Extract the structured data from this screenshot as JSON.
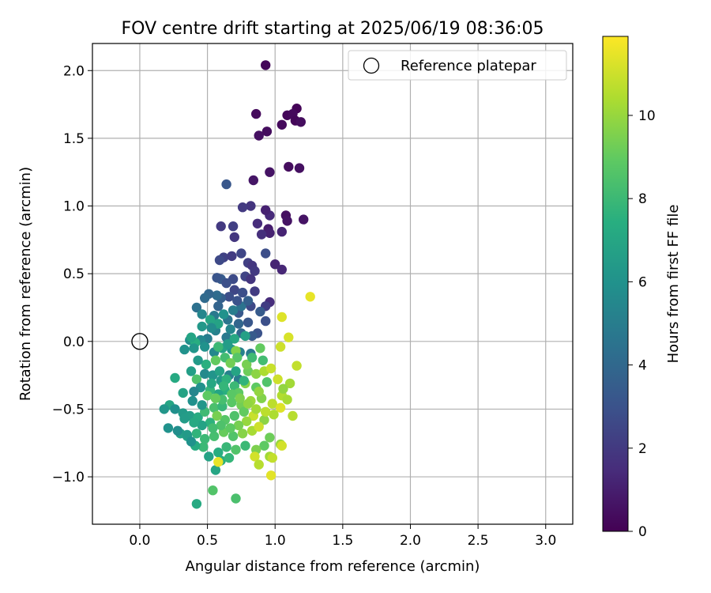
{
  "chart_data": {
    "type": "scatter",
    "title": "FOV centre drift starting at 2025/06/19 08:36:05",
    "xlabel": "Angular distance from reference (arcmin)",
    "ylabel": "Rotation from reference (arcmin)",
    "xlim": [
      -0.35,
      3.2
    ],
    "ylim": [
      -1.35,
      2.2
    ],
    "x_ticks": [
      0.0,
      0.5,
      1.0,
      1.5,
      2.0,
      2.5,
      3.0
    ],
    "x_tick_labels": [
      "0.0",
      "0.5",
      "1.0",
      "1.5",
      "2.0",
      "2.5",
      "3.0"
    ],
    "y_ticks": [
      -1.0,
      -0.5,
      0.0,
      0.5,
      1.0,
      1.5,
      2.0
    ],
    "y_tick_labels": [
      "−1.0",
      "−0.5",
      "0.0",
      "0.5",
      "1.0",
      "1.5",
      "2.0"
    ],
    "grid": true,
    "colormap": "viridis",
    "colorbar": {
      "label": "Hours from first FF file",
      "range": [
        0,
        11.9
      ],
      "ticks": [
        0,
        2,
        4,
        6,
        8,
        10
      ],
      "tick_labels": [
        "0",
        "2",
        "4",
        "6",
        "8",
        "10"
      ]
    },
    "legend": {
      "placement": "top-right",
      "entries": [
        {
          "label": "Reference platepar",
          "marker": "open-circle"
        }
      ]
    },
    "reference_point": {
      "x": 0.0,
      "y": 0.0
    },
    "points": [
      [
        0.93,
        2.04,
        0.2
      ],
      [
        0.86,
        1.68,
        0.3
      ],
      [
        1.16,
        1.72,
        0.1
      ],
      [
        1.09,
        1.67,
        0.2
      ],
      [
        1.13,
        1.68,
        0.3
      ],
      [
        1.15,
        1.63,
        0.2
      ],
      [
        1.19,
        1.62,
        0.4
      ],
      [
        1.05,
        1.6,
        0.3
      ],
      [
        0.94,
        1.55,
        0.4
      ],
      [
        0.88,
        1.52,
        0.5
      ],
      [
        1.1,
        1.29,
        0.4
      ],
      [
        1.18,
        1.28,
        0.5
      ],
      [
        0.96,
        1.25,
        0.6
      ],
      [
        0.84,
        1.19,
        0.7
      ],
      [
        1.21,
        0.9,
        0.6
      ],
      [
        1.08,
        0.93,
        0.5
      ],
      [
        1.09,
        0.89,
        0.6
      ],
      [
        0.96,
        0.93,
        1.4
      ],
      [
        0.93,
        0.97,
        1.1
      ],
      [
        0.82,
        1.0,
        1.8
      ],
      [
        0.76,
        0.99,
        2.0
      ],
      [
        0.64,
        1.16,
        3.2
      ],
      [
        0.6,
        0.85,
        2.0
      ],
      [
        0.69,
        0.85,
        2.2
      ],
      [
        0.87,
        0.87,
        1.5
      ],
      [
        0.95,
        0.83,
        0.9
      ],
      [
        0.96,
        0.8,
        1.1
      ],
      [
        1.05,
        0.81,
        1.2
      ],
      [
        0.9,
        0.79,
        1.6
      ],
      [
        0.7,
        0.77,
        1.9
      ],
      [
        0.62,
        0.62,
        2.3
      ],
      [
        0.59,
        0.6,
        2.6
      ],
      [
        0.68,
        0.63,
        2.1
      ],
      [
        0.75,
        0.65,
        2.5
      ],
      [
        0.8,
        0.58,
        2.2
      ],
      [
        0.83,
        0.56,
        1.9
      ],
      [
        1.0,
        0.57,
        1.2
      ],
      [
        1.05,
        0.53,
        1.3
      ],
      [
        0.85,
        0.52,
        2.0
      ],
      [
        0.78,
        0.48,
        2.4
      ],
      [
        0.69,
        0.46,
        2.7
      ],
      [
        0.6,
        0.46,
        3.4
      ],
      [
        0.57,
        0.47,
        3.1
      ],
      [
        0.64,
        0.43,
        2.9
      ],
      [
        0.82,
        0.46,
        1.8
      ],
      [
        0.93,
        0.65,
        2.8
      ],
      [
        0.7,
        0.38,
        2.5
      ],
      [
        0.76,
        0.36,
        2.8
      ],
      [
        0.85,
        0.37,
        2.1
      ],
      [
        0.96,
        0.29,
        1.5
      ],
      [
        0.93,
        0.26,
        2.1
      ],
      [
        0.82,
        0.26,
        2.6
      ],
      [
        0.73,
        0.21,
        3.3
      ],
      [
        0.66,
        0.33,
        2.8
      ],
      [
        0.6,
        0.32,
        3.6
      ],
      [
        0.57,
        0.34,
        4.2
      ],
      [
        0.51,
        0.35,
        3.9
      ],
      [
        0.48,
        0.32,
        4.1
      ],
      [
        0.42,
        0.25,
        4.4
      ],
      [
        0.46,
        0.2,
        5.4
      ],
      [
        0.55,
        0.19,
        4.8
      ],
      [
        0.65,
        0.16,
        4.6
      ],
      [
        0.73,
        0.13,
        3.9
      ],
      [
        0.8,
        0.14,
        3.2
      ],
      [
        0.87,
        0.06,
        3.0
      ],
      [
        0.83,
        0.04,
        3.4
      ],
      [
        0.75,
        0.06,
        4.0
      ],
      [
        0.64,
        0.03,
        4.8
      ],
      [
        0.56,
        0.08,
        5.2
      ],
      [
        0.5,
        0.02,
        5.0
      ],
      [
        0.45,
        0.01,
        5.5
      ],
      [
        0.37,
        0.01,
        5.8
      ],
      [
        0.41,
        -0.01,
        7.4
      ],
      [
        0.33,
        -0.06,
        6.0
      ],
      [
        0.4,
        -0.05,
        6.2
      ],
      [
        0.48,
        -0.04,
        6.0
      ],
      [
        0.55,
        -0.08,
        5.5
      ],
      [
        0.61,
        -0.05,
        6.8
      ],
      [
        0.68,
        -0.06,
        6.1
      ],
      [
        0.74,
        -0.08,
        5.2
      ],
      [
        0.82,
        -0.09,
        4.8
      ],
      [
        0.89,
        -0.05,
        9.0
      ],
      [
        1.04,
        -0.04,
        11.0
      ],
      [
        1.05,
        0.18,
        11.3
      ],
      [
        1.1,
        0.03,
        11.2
      ],
      [
        1.26,
        0.33,
        11.5
      ],
      [
        0.71,
        -0.07,
        9.6
      ],
      [
        0.63,
        -0.12,
        8.2
      ],
      [
        0.56,
        -0.14,
        9.0
      ],
      [
        0.49,
        -0.17,
        7.5
      ],
      [
        0.43,
        -0.14,
        6.4
      ],
      [
        0.38,
        -0.22,
        6.6
      ],
      [
        0.26,
        -0.27,
        7.2
      ],
      [
        0.42,
        -0.28,
        8.5
      ],
      [
        0.48,
        -0.24,
        5.6
      ],
      [
        0.54,
        -0.25,
        6.1
      ],
      [
        0.59,
        -0.22,
        6.8
      ],
      [
        0.66,
        -0.25,
        5.2
      ],
      [
        0.73,
        -0.28,
        4.9
      ],
      [
        0.8,
        -0.22,
        9.2
      ],
      [
        0.86,
        -0.24,
        9.8
      ],
      [
        0.92,
        -0.22,
        10.4
      ],
      [
        0.97,
        -0.2,
        10.9
      ],
      [
        1.16,
        -0.18,
        10.8
      ],
      [
        1.02,
        -0.28,
        11.0
      ],
      [
        1.05,
        -0.4,
        10.5
      ],
      [
        1.11,
        -0.31,
        10.2
      ],
      [
        1.06,
        -0.35,
        9.9
      ],
      [
        0.94,
        -0.3,
        8.6
      ],
      [
        0.86,
        -0.34,
        8.9
      ],
      [
        0.78,
        -0.31,
        9.7
      ],
      [
        0.7,
        -0.33,
        8.0
      ],
      [
        0.63,
        -0.36,
        7.5
      ],
      [
        0.58,
        -0.39,
        6.9
      ],
      [
        0.52,
        -0.36,
        7.8
      ],
      [
        0.45,
        -0.34,
        6.0
      ],
      [
        0.4,
        -0.37,
        5.4
      ],
      [
        0.32,
        -0.38,
        6.8
      ],
      [
        0.22,
        -0.47,
        7.0
      ],
      [
        0.18,
        -0.5,
        6.2
      ],
      [
        0.26,
        -0.5,
        5.9
      ],
      [
        0.32,
        -0.53,
        6.4
      ],
      [
        0.37,
        -0.55,
        6.6
      ],
      [
        0.43,
        -0.56,
        7.3
      ],
      [
        0.48,
        -0.52,
        8.1
      ],
      [
        0.55,
        -0.49,
        8.4
      ],
      [
        0.61,
        -0.48,
        7.9
      ],
      [
        0.68,
        -0.45,
        8.8
      ],
      [
        0.75,
        -0.47,
        9.3
      ],
      [
        0.82,
        -0.44,
        10.1
      ],
      [
        0.9,
        -0.42,
        9.6
      ],
      [
        0.98,
        -0.46,
        10.7
      ],
      [
        1.04,
        -0.49,
        11.3
      ],
      [
        1.09,
        -0.43,
        10.3
      ],
      [
        1.13,
        -0.55,
        10.6
      ],
      [
        0.99,
        -0.54,
        10.4
      ],
      [
        0.92,
        -0.58,
        9.8
      ],
      [
        0.84,
        -0.55,
        10.9
      ],
      [
        0.77,
        -0.52,
        9.0
      ],
      [
        0.7,
        -0.55,
        8.5
      ],
      [
        0.63,
        -0.58,
        8.7
      ],
      [
        0.57,
        -0.55,
        9.4
      ],
      [
        0.52,
        -0.6,
        7.6
      ],
      [
        0.46,
        -0.62,
        6.8
      ],
      [
        0.4,
        -0.6,
        7.2
      ],
      [
        0.33,
        -0.57,
        6.5
      ],
      [
        0.21,
        -0.64,
        6.0
      ],
      [
        0.3,
        -0.68,
        6.7
      ],
      [
        0.35,
        -0.7,
        7.0
      ],
      [
        0.42,
        -0.68,
        7.7
      ],
      [
        0.48,
        -0.72,
        8.0
      ],
      [
        0.55,
        -0.7,
        8.3
      ],
      [
        0.62,
        -0.67,
        9.1
      ],
      [
        0.69,
        -0.7,
        8.6
      ],
      [
        0.76,
        -0.68,
        9.7
      ],
      [
        0.83,
        -0.66,
        10.3
      ],
      [
        0.88,
        -0.63,
        11.0
      ],
      [
        0.96,
        -0.71,
        9.2
      ],
      [
        1.04,
        -0.76,
        10.0
      ],
      [
        1.05,
        -0.77,
        11.1
      ],
      [
        0.92,
        -0.77,
        8.9
      ],
      [
        0.86,
        -0.8,
        9.5
      ],
      [
        0.78,
        -0.77,
        8.0
      ],
      [
        0.71,
        -0.8,
        8.6
      ],
      [
        0.64,
        -0.78,
        7.9
      ],
      [
        0.58,
        -0.82,
        7.4
      ],
      [
        0.51,
        -0.85,
        6.8
      ],
      [
        0.47,
        -0.78,
        8.0
      ],
      [
        0.41,
        -0.77,
        7.3
      ],
      [
        0.35,
        -0.69,
        6.4
      ],
      [
        0.56,
        -0.95,
        7.0
      ],
      [
        0.6,
        -0.88,
        7.4
      ],
      [
        0.66,
        -0.86,
        7.8
      ],
      [
        0.58,
        -0.89,
        11.5
      ],
      [
        0.85,
        -0.85,
        11.1
      ],
      [
        0.96,
        -0.85,
        10.2
      ],
      [
        0.98,
        -0.86,
        10.8
      ],
      [
        0.88,
        -0.91,
        10.6
      ],
      [
        0.97,
        -0.99,
        11.4
      ],
      [
        0.54,
        -1.1,
        8.6
      ],
      [
        0.71,
        -1.16,
        8.4
      ],
      [
        0.42,
        -1.2,
        7.2
      ],
      [
        0.38,
        -0.74,
        6.0
      ],
      [
        0.28,
        -0.66,
        5.8
      ],
      [
        0.61,
        -0.43,
        8.3
      ],
      [
        0.73,
        -0.38,
        8.9
      ],
      [
        0.88,
        -0.37,
        9.9
      ],
      [
        0.79,
        -0.17,
        9.4
      ],
      [
        0.72,
        -0.12,
        8.7
      ],
      [
        0.67,
        -0.16,
        9.3
      ],
      [
        0.58,
        -0.04,
        8.0
      ],
      [
        0.53,
        -0.31,
        7.1
      ],
      [
        0.6,
        -0.29,
        6.3
      ],
      [
        0.64,
        -0.28,
        7.6
      ],
      [
        0.71,
        -0.22,
        6.9
      ],
      [
        0.77,
        -0.29,
        7.7
      ],
      [
        0.83,
        -0.12,
        8.1
      ],
      [
        0.91,
        -0.14,
        8.2
      ],
      [
        0.78,
        0.04,
        6.7
      ],
      [
        0.7,
        0.02,
        7.1
      ],
      [
        0.65,
        -0.02,
        6.5
      ],
      [
        0.58,
        0.13,
        6.8
      ],
      [
        0.52,
        0.16,
        7.0
      ],
      [
        0.62,
        0.2,
        6.0
      ],
      [
        0.69,
        0.23,
        5.0
      ],
      [
        0.75,
        0.26,
        4.5
      ],
      [
        0.8,
        0.3,
        3.6
      ],
      [
        0.89,
        0.22,
        3.4
      ],
      [
        0.93,
        0.15,
        2.9
      ],
      [
        0.67,
        0.09,
        5.4
      ],
      [
        0.72,
        0.3,
        3.0
      ],
      [
        0.58,
        0.26,
        3.8
      ],
      [
        0.53,
        0.1,
        5.7
      ],
      [
        0.46,
        0.11,
        6.3
      ],
      [
        0.38,
        0.03,
        6.9
      ],
      [
        0.62,
        -0.33,
        7.8
      ],
      [
        0.68,
        -0.39,
        8.8
      ],
      [
        0.74,
        -0.42,
        9.5
      ],
      [
        0.8,
        -0.46,
        9.9
      ],
      [
        0.86,
        -0.5,
        10.2
      ],
      [
        0.93,
        -0.52,
        10.7
      ],
      [
        0.79,
        -0.59,
        10.0
      ],
      [
        0.73,
        -0.62,
        9.4
      ],
      [
        0.67,
        -0.64,
        8.9
      ],
      [
        0.6,
        -0.62,
        8.5
      ],
      [
        0.54,
        -0.64,
        8.2
      ],
      [
        0.5,
        -0.4,
        8.9
      ],
      [
        0.56,
        -0.42,
        9.1
      ],
      [
        0.46,
        -0.47,
        6.2
      ],
      [
        0.39,
        -0.44,
        5.9
      ]
    ]
  }
}
